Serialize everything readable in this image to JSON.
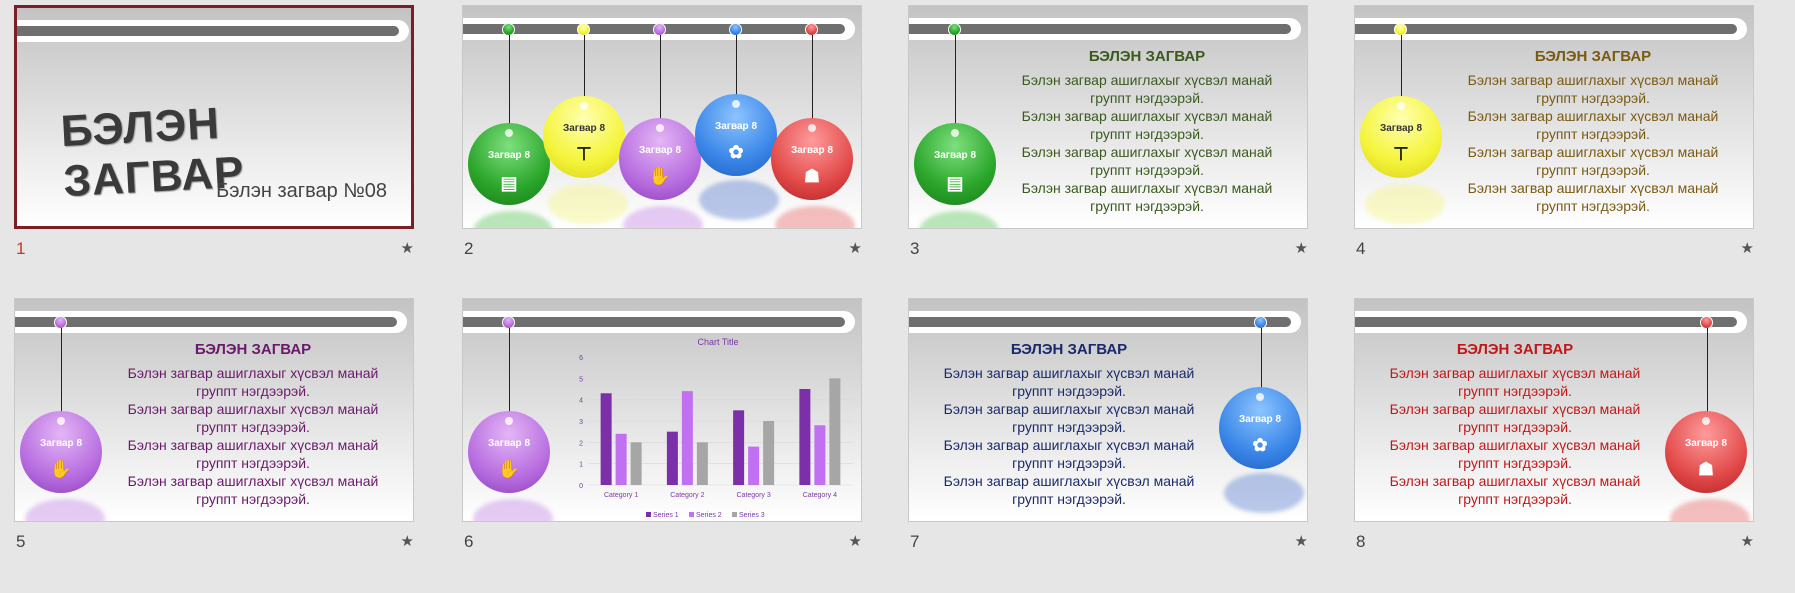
{
  "slides": [
    {
      "number": "1",
      "title": "БЭЛЭН ЗАГВАР",
      "subtitle": "Бэлэн загвар №08"
    },
    {
      "number": "2",
      "ball_label": "Загвар 8"
    },
    {
      "number": "3",
      "ball_label": "Загвар 8",
      "heading": "БЭЛЭН ЗАГВАР",
      "color": "#3a5a1e",
      "paragraphs": [
        "Бэлэн загвар ашиглахыг хүсвэл манай группт нэгдээрэй.",
        "Бэлэн загвар ашиглахыг хүсвэл манай группт нэгдээрэй.",
        "Бэлэн загвар ашиглахыг хүсвэл манай группт нэгдээрэй.",
        "Бэлэн загвар ашиглахыг хүсвэл манай группт нэгдээрэй."
      ]
    },
    {
      "number": "4",
      "ball_label": "Загвар 8",
      "heading": "БЭЛЭН ЗАГВАР",
      "color": "#7a5a12",
      "paragraphs": [
        "Бэлэн загвар ашиглахыг хүсвэл манай группт нэгдээрэй.",
        "Бэлэн загвар ашиглахыг хүсвэл манай группт нэгдээрэй.",
        "Бэлэн загвар ашиглахыг хүсвэл манай группт нэгдээрэй.",
        "Бэлэн загвар ашиглахыг хүсвэл манай группт нэгдээрэй."
      ]
    },
    {
      "number": "5",
      "ball_label": "Загвар 8",
      "heading": "БЭЛЭН ЗАГВАР",
      "color": "#6a1a6a",
      "paragraphs": [
        "Бэлэн загвар ашиглахыг хүсвэл манай группт нэгдээрэй.",
        "Бэлэн загвар ашиглахыг хүсвэл манай группт нэгдээрэй.",
        "Бэлэн загвар ашиглахыг хүсвэл манай группт нэгдээрэй.",
        "Бэлэн загвар ашиглахыг хүсвэл манай группт нэгдээрэй."
      ]
    },
    {
      "number": "6",
      "ball_label": "Загвар 8"
    },
    {
      "number": "7",
      "ball_label": "Загвар 8",
      "heading": "БЭЛЭН ЗАГВАР",
      "color": "#1a2a6a",
      "paragraphs": [
        "Бэлэн загвар ашиглахыг хүсвэл манай группт нэгдээрэй.",
        "Бэлэн загвар ашиглахыг хүсвэл манай группт нэгдээрэй.",
        "Бэлэн загвар ашиглахыг хүсвэл манай группт нэгдээрэй.",
        "Бэлэн загвар ашиглахыг хүсвэл манай группт нэгдээрэй."
      ]
    },
    {
      "number": "8",
      "ball_label": "Загвар 8",
      "heading": "БЭЛЭН ЗАГВАР",
      "color": "#c01818",
      "paragraphs": [
        "Бэлэн загвар ашиглахыг хүсвэл манай группт нэгдээрэй.",
        "Бэлэн загвар ашиглахыг хүсвэл манай группт нэгдээрэй.",
        "Бэлэн загвар ашиглахыг хүсвэл манай группт нэгдээрэй.",
        "Бэлэн загвар ашиглахыг хүсвэл манай группт нэгдээрэй."
      ]
    }
  ],
  "icons": {
    "slide2_ball1": "checklist-icon",
    "slide2_ball2": "org-chart-icon",
    "slide2_ball3": "teamwork-icon",
    "slide2_ball4": "handshake-icon",
    "slide2_ball5": "team-icon",
    "star": "star-icon"
  },
  "star_glyph": "★",
  "colors": {
    "selected_border": "#7a1f24",
    "selected_number": "#c0392b",
    "green": "#2aa52a",
    "yellow": "#f4f43a",
    "purple": "#b86ee0",
    "blue": "#3a86e8",
    "red": "#e24a4a"
  },
  "chart_data": {
    "type": "bar",
    "title": "Chart Title",
    "categories": [
      "Category 1",
      "Category 2",
      "Category 3",
      "Category 4"
    ],
    "series": [
      {
        "name": "Series 1",
        "values": [
          4.3,
          2.5,
          3.5,
          4.5
        ],
        "color": "#7b2fa8"
      },
      {
        "name": "Series 2",
        "values": [
          2.4,
          4.4,
          1.8,
          2.8
        ],
        "color": "#c070f0"
      },
      {
        "name": "Series 3",
        "values": [
          2,
          2,
          3,
          5
        ],
        "color": "#a6a6a6"
      }
    ],
    "yticks": [
      "0",
      "1",
      "2",
      "3",
      "4",
      "5",
      "6"
    ],
    "ylim": [
      0,
      6
    ],
    "legend": "bottom"
  }
}
